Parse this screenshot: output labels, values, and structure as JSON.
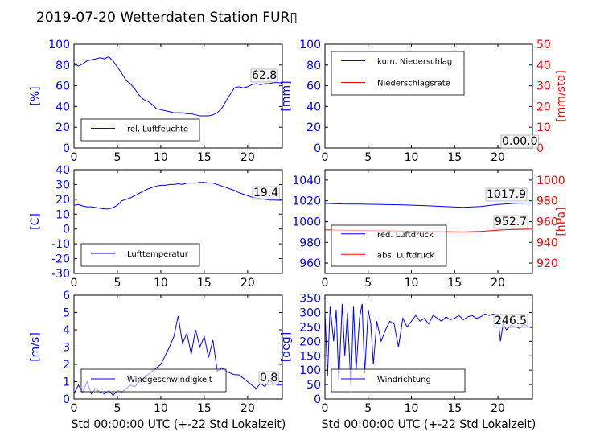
{
  "figure": {
    "title": "2019-07-20 Wetterdaten Station FUR▯",
    "xlabel": "Std 00:00:00 UTC (+-22 Std Lokalzeit)"
  },
  "colors": {
    "left_axis": "#0000ff",
    "right_axis": "#ff0000",
    "line_blue": "#0000ff",
    "line_red": "#ff0000"
  },
  "chart_data": [
    {
      "id": "humidity",
      "type": "line",
      "ylabel": "[%]",
      "xlim": [
        0,
        24
      ],
      "ylim": [
        0,
        100
      ],
      "xticks": [
        0,
        5,
        10,
        15,
        20
      ],
      "yticks": [
        0,
        20,
        40,
        60,
        80,
        100
      ],
      "legend": "bottom-left",
      "value_label": "62.8",
      "series": [
        {
          "name": "rel. Luftfeuchte",
          "color": "#0000ff",
          "x": [
            0,
            0.5,
            1,
            1.5,
            2,
            2.5,
            3,
            3.5,
            4,
            4.5,
            5,
            5.5,
            6,
            6.5,
            7,
            7.5,
            8,
            8.5,
            9,
            9.5,
            10,
            10.5,
            11,
            11.5,
            12,
            12.5,
            13,
            13.5,
            14,
            14.5,
            15,
            15.5,
            16,
            16.5,
            17,
            17.5,
            18,
            18.5,
            19,
            19.5,
            20,
            20.5,
            21,
            21.5,
            22,
            22.5,
            23,
            23.5,
            24
          ],
          "y": [
            82,
            79,
            81,
            84,
            85,
            86,
            87,
            86,
            88,
            84,
            78,
            72,
            65,
            62,
            57,
            51,
            47,
            45,
            42,
            38,
            37,
            36,
            35,
            34,
            34,
            34,
            33,
            33,
            32,
            31,
            31,
            31,
            32,
            34,
            38,
            45,
            52,
            58,
            59,
            58,
            59,
            61,
            62,
            61,
            62,
            62,
            63,
            63,
            62.8
          ]
        }
      ]
    },
    {
      "id": "precip",
      "type": "line",
      "ylabel": "[mm]",
      "ylabel_right": "[mm/std]",
      "xlim": [
        0,
        24
      ],
      "ylim": [
        0,
        100
      ],
      "ylim_right": [
        0,
        50
      ],
      "xticks": [
        0,
        5,
        10,
        15,
        20
      ],
      "yticks": [
        0,
        20,
        40,
        60,
        80,
        100
      ],
      "yticks_right": [
        0,
        10,
        20,
        30,
        40,
        50
      ],
      "legend": "top-left",
      "value_label": "0.00.0",
      "series": [
        {
          "name": "kum. Niederschlag",
          "color": "#0000ff",
          "x": [
            0,
            24
          ],
          "y": [
            0,
            0
          ]
        },
        {
          "name": "Niederschlagsrate",
          "color": "#ff0000",
          "axis": "right",
          "x": [
            0,
            24
          ],
          "y": [
            0,
            0
          ]
        }
      ]
    },
    {
      "id": "temperature",
      "type": "line",
      "ylabel": "[C]",
      "xlim": [
        0,
        24
      ],
      "ylim": [
        -30,
        40
      ],
      "xticks": [
        0,
        5,
        10,
        15,
        20
      ],
      "yticks": [
        -30,
        -20,
        -10,
        0,
        10,
        20,
        30,
        40
      ],
      "legend": "bottom-left",
      "value_label": "19.4",
      "series": [
        {
          "name": "Lufttemperatur",
          "color": "#0000ff",
          "x": [
            0,
            0.5,
            1,
            1.5,
            2,
            2.5,
            3,
            3.5,
            4,
            4.5,
            5,
            5.5,
            6,
            6.5,
            7,
            7.5,
            8,
            8.5,
            9,
            9.5,
            10,
            10.5,
            11,
            11.5,
            12,
            12.5,
            13,
            13.5,
            14,
            14.5,
            15,
            15.5,
            16,
            16.5,
            17,
            17.5,
            18,
            18.5,
            19,
            19.5,
            20,
            20.5,
            21,
            21.5,
            22,
            22.5,
            23,
            23.5,
            24
          ],
          "y": [
            16,
            16.5,
            15.5,
            15,
            15,
            14.5,
            14,
            13.5,
            13.5,
            14.5,
            16,
            19,
            20,
            21,
            22.5,
            24,
            25.5,
            27,
            28,
            29,
            29.5,
            29.5,
            30,
            30,
            30.5,
            30,
            31,
            31,
            31,
            31.5,
            31.5,
            31,
            31,
            30,
            29,
            28,
            27,
            26,
            24.5,
            23.5,
            22.5,
            21.5,
            21,
            20.5,
            20,
            19.5,
            19.5,
            19.4,
            19.4
          ]
        }
      ]
    },
    {
      "id": "pressure",
      "type": "line",
      "ylabel_right": "[hPa]",
      "xlim": [
        0,
        24
      ],
      "ylim": [
        950,
        1050
      ],
      "ylim_right": [
        910,
        1010
      ],
      "xticks": [
        0,
        5,
        10,
        15,
        20
      ],
      "yticks": [
        960,
        980,
        1000,
        1020,
        1040
      ],
      "yticks_right": [
        920,
        940,
        960,
        980,
        1000
      ],
      "legend": "bottom-left",
      "value_labels": [
        "1017.9",
        "952.7"
      ],
      "series": [
        {
          "name": "red. Luftdruck",
          "color": "#0000ff",
          "x": [
            0,
            2,
            4,
            6,
            8,
            10,
            12,
            14,
            16,
            18,
            20,
            22,
            24
          ],
          "y": [
            1017.5,
            1017.0,
            1016.8,
            1016.6,
            1016.3,
            1015.8,
            1015.2,
            1014.4,
            1013.8,
            1014.5,
            1016.5,
            1017.6,
            1017.9
          ]
        },
        {
          "name": "abs. Luftdruck",
          "color": "#ff0000",
          "axis": "right",
          "x": [
            0,
            2,
            4,
            6,
            8,
            10,
            12,
            14,
            16,
            18,
            20,
            22,
            24
          ],
          "y": [
            952.0,
            951.6,
            951.4,
            951.2,
            951.0,
            950.7,
            950.4,
            950.2,
            950.0,
            950.5,
            951.8,
            952.5,
            952.7
          ]
        }
      ]
    },
    {
      "id": "wind_speed",
      "type": "line",
      "ylabel": "[m/s]",
      "xlim": [
        0,
        24
      ],
      "ylim": [
        0,
        6
      ],
      "xticks": [
        0,
        5,
        10,
        15,
        20
      ],
      "yticks": [
        0,
        1,
        2,
        3,
        4,
        5,
        6
      ],
      "legend": "bottom-left",
      "value_label": "0.8",
      "series": [
        {
          "name": "Windgeschwindigkeit",
          "color": "#0000ff",
          "x": [
            0,
            0.5,
            1,
            1.5,
            2,
            2.5,
            3,
            3.5,
            4,
            4.5,
            5,
            5.5,
            6,
            6.5,
            7,
            7.5,
            8,
            8.5,
            9,
            9.5,
            10,
            10.5,
            11,
            11.5,
            12,
            12.5,
            13,
            13.5,
            14,
            14.5,
            15,
            15.5,
            16,
            16.5,
            17,
            17.5,
            18,
            18.5,
            19,
            19.5,
            20,
            20.5,
            21,
            21.5,
            22,
            22.5,
            23,
            23.5,
            24
          ],
          "y": [
            0.3,
            0.8,
            0.4,
            1.0,
            0.3,
            0.6,
            0.4,
            0.3,
            0.5,
            0.2,
            0.5,
            0.4,
            0.6,
            0.8,
            0.7,
            1.0,
            1.2,
            1.4,
            1.6,
            1.8,
            2.0,
            2.5,
            3.0,
            3.6,
            4.8,
            3.2,
            3.8,
            2.6,
            4.0,
            3.0,
            3.6,
            2.4,
            3.4,
            1.6,
            1.8,
            1.6,
            1.5,
            1.4,
            1.4,
            1.2,
            1.0,
            0.8,
            0.6,
            0.9,
            0.7,
            1.1,
            0.9,
            0.8,
            0.8
          ]
        }
      ]
    },
    {
      "id": "wind_direction",
      "type": "line",
      "ylabel": "[deg]",
      "xlim": [
        0,
        24
      ],
      "ylim": [
        0,
        360
      ],
      "xticks": [
        0,
        5,
        10,
        15,
        20
      ],
      "yticks": [
        0,
        50,
        100,
        150,
        200,
        250,
        300,
        350
      ],
      "legend": "bottom-left",
      "value_label": "246.5",
      "series": [
        {
          "name": "Windrichtung",
          "color": "#0000ff",
          "x": [
            0,
            0.3,
            0.6,
            1,
            1.3,
            1.6,
            2,
            2.3,
            2.6,
            3,
            3.3,
            3.6,
            4,
            4.3,
            4.6,
            5,
            5.3,
            5.6,
            6,
            6.5,
            7,
            7.5,
            8,
            8.5,
            9,
            9.5,
            10,
            10.5,
            11,
            11.5,
            12,
            12.5,
            13,
            13.5,
            14,
            14.5,
            15,
            15.5,
            16,
            16.5,
            17,
            17.5,
            18,
            18.5,
            19,
            19.5,
            20,
            20.3,
            20.6,
            21,
            21.5,
            22,
            22.5,
            23,
            23.5,
            24
          ],
          "y": [
            300,
            80,
            320,
            200,
            310,
            60,
            330,
            150,
            300,
            40,
            320,
            100,
            280,
            330,
            90,
            310,
            260,
            120,
            270,
            200,
            240,
            270,
            260,
            180,
            280,
            250,
            270,
            290,
            270,
            280,
            260,
            290,
            280,
            270,
            285,
            275,
            280,
            290,
            275,
            285,
            290,
            280,
            285,
            295,
            290,
            295,
            290,
            200,
            260,
            240,
            255,
            250,
            245,
            260,
            250,
            246.5
          ]
        }
      ]
    }
  ]
}
